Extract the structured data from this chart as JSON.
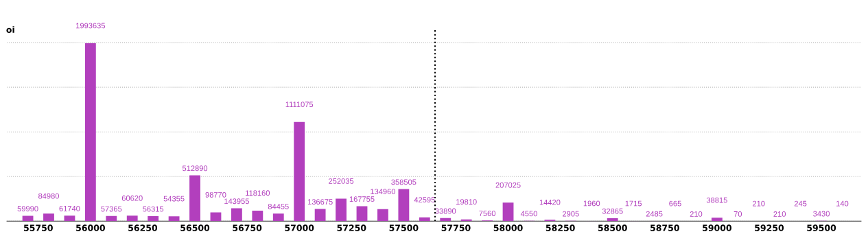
{
  "chart_data": {
    "type": "bar",
    "ylabel": "oi",
    "x": [
      55700,
      55800,
      55900,
      56000,
      56100,
      56200,
      56300,
      56400,
      56500,
      56600,
      56700,
      56800,
      56900,
      57000,
      57100,
      57200,
      57300,
      57400,
      57500,
      57600,
      57700,
      57800,
      57900,
      58000,
      58100,
      58200,
      58300,
      58400,
      58500,
      58600,
      58700,
      58800,
      58900,
      59000,
      59100,
      59200,
      59300,
      59400,
      59500,
      59600
    ],
    "values": [
      59990,
      84980,
      61740,
      1993635,
      57365,
      60620,
      56315,
      54355,
      512890,
      98770,
      143955,
      118160,
      84455,
      1111075,
      136675,
      252035,
      167755,
      134960,
      358505,
      42595,
      33890,
      19810,
      7560,
      207025,
      4550,
      14420,
      2905,
      1960,
      32865,
      1715,
      2485,
      665,
      210,
      38815,
      70,
      210,
      210,
      245,
      3430,
      140
    ],
    "color": "#b23fbd",
    "data_labels": true,
    "xlim": [
      55600,
      59690
    ],
    "xticks": [
      55750,
      56000,
      56250,
      56500,
      56750,
      57000,
      57250,
      57500,
      57750,
      58000,
      58250,
      58500,
      58750,
      59000,
      59250,
      59500
    ],
    "ylim": [
      0,
      2150000
    ],
    "yticks": [
      {
        "value": 0,
        "label": null
      },
      {
        "value": 500000,
        "label": null
      },
      {
        "value": 1000000,
        "label": null
      },
      {
        "value": 1500000,
        "label": null
      },
      {
        "value": 2000000,
        "label": null
      }
    ],
    "tick_labels": "x",
    "grid": "y",
    "ref_lines": [
      {
        "axis": "x",
        "value": 57650,
        "label": null,
        "color": "#000000",
        "line_style": "dotted"
      }
    ]
  }
}
